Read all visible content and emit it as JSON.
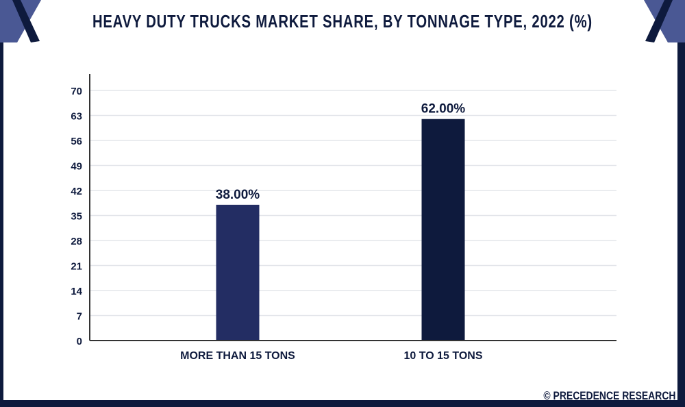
{
  "title": "HEAVY DUTY TRUCKS MARKET SHARE, BY TONNAGE TYPE, 2022 (%)",
  "credit": "© PRECEDENCE RESEARCH",
  "colors": {
    "frame": "#0e1a3d",
    "accent": "#4a5894"
  },
  "chart_data": {
    "type": "bar",
    "title": "HEAVY DUTY TRUCKS MARKET SHARE, BY TONNAGE TYPE, 2022 (%)",
    "categories": [
      "MORE THAN 15 TONS",
      "10 TO 15 TONS"
    ],
    "values": [
      38,
      62
    ],
    "data_labels": [
      "38.00%",
      "62.00%"
    ],
    "bar_colors": [
      "#232d63",
      "#0e1a3d"
    ],
    "ylim": [
      0,
      70
    ],
    "yticks": [
      "0",
      "7",
      "14",
      "21",
      "28",
      "35",
      "42",
      "49",
      "56",
      "63",
      "70"
    ],
    "grid": true,
    "xlabel": "",
    "ylabel": ""
  }
}
